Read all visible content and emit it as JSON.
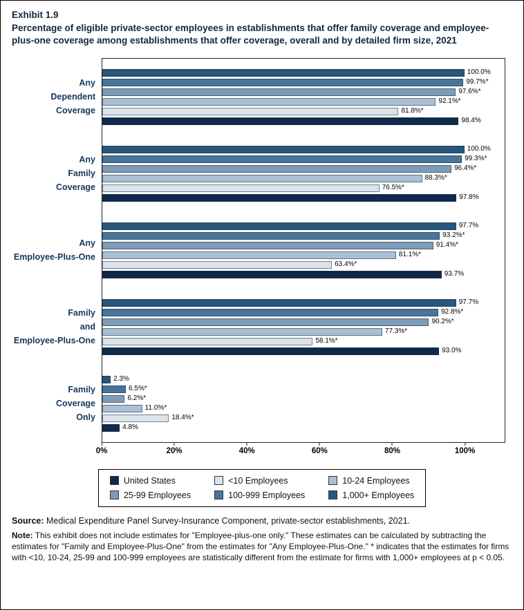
{
  "header": {
    "exhibit": "Exhibit 1.9"
  },
  "chart_data": {
    "type": "bar",
    "orientation": "horizontal",
    "title": "Percentage of eligible private-sector employees in establishments that offer family coverage and employee-plus-one coverage among establishments that offer coverage, overall and by detailed firm size, 2021",
    "categories": [
      "Any Dependent Coverage",
      "Any Family Coverage",
      "Any Employee-Plus-One",
      "Family and Employee-Plus-One",
      "Family Coverage Only"
    ],
    "group_labels_display": [
      "Any\nDependent\nCoverage",
      "Any\nFamily\nCoverage",
      "Any\nEmployee-Plus-One",
      "Family\nand\nEmployee-Plus-One",
      "Family\nCoverage\nOnly"
    ],
    "bar_order_top_to_bottom": [
      "1,000+ Employees",
      "100-999 Employees",
      "25-99 Employees",
      "10-24 Employees",
      "<10 Employees",
      "United States"
    ],
    "series": [
      {
        "name": "United States",
        "color": "#10294a",
        "values": [
          98.4,
          97.8,
          93.7,
          93.0,
          4.8
        ],
        "labels": [
          "98.4%",
          "97.8%",
          "93.7%",
          "93.0%",
          "4.8%"
        ]
      },
      {
        "name": "<10 Employees",
        "color": "#dce4eb",
        "values": [
          81.8,
          76.5,
          63.4,
          58.1,
          18.4
        ],
        "labels": [
          "81.8%*",
          "76.5%*",
          "63.4%*",
          "58.1%*",
          "18.4%*"
        ]
      },
      {
        "name": "10-24 Employees",
        "color": "#a9c0d4",
        "values": [
          92.1,
          88.3,
          81.1,
          77.3,
          11.0
        ],
        "labels": [
          "92.1%*",
          "88.3%*",
          "81.1%*",
          "77.3%*",
          "11.0%*"
        ]
      },
      {
        "name": "25-99 Employees",
        "color": "#7e9cb7",
        "values": [
          97.6,
          96.4,
          91.4,
          90.2,
          6.2
        ],
        "labels": [
          "97.6%*",
          "96.4%*",
          "91.4%*",
          "90.2%*",
          "6.2%*"
        ]
      },
      {
        "name": "100-999 Employees",
        "color": "#49759b",
        "values": [
          99.7,
          99.3,
          93.2,
          92.8,
          6.5
        ],
        "labels": [
          "99.7%*",
          "99.3%*",
          "93.2%*",
          "92.8%*",
          "6.5%*"
        ]
      },
      {
        "name": "1,000+ Employees",
        "color": "#29567c",
        "values": [
          100.0,
          100.0,
          97.7,
          97.7,
          2.3
        ],
        "labels": [
          "100.0%",
          "100.0%",
          "97.7%",
          "97.7%",
          "2.3%"
        ]
      }
    ],
    "x_axis": {
      "min": 0,
      "max": 100,
      "ticks": [
        "0%",
        "20%",
        "40%",
        "60%",
        "80%",
        "100%"
      ]
    },
    "legend": [
      "United States",
      "<10 Employees",
      "10-24 Employees",
      "25-99 Employees",
      "100-999 Employees",
      "1,000+ Employees"
    ],
    "grid": false,
    "legend_position": "bottom"
  },
  "source": {
    "label": "Source:",
    "text": " Medical Expenditure Panel Survey-Insurance Component, private-sector establishments, 2021."
  },
  "note": {
    "label": "Note:",
    "text": " This exhibit does not include estimates for \"Employee-plus-one only.\" These estimates can be calculated by subtracting the estimates for \"Family and Employee-Plus-One\" from the estimates for \"Any Employee-Plus-One.\" * indicates that the estimates for firms with <10, 10-24, 25-99 and 100-999 employees are statistically different from the estimate for firms with 1,000+ employees at p < 0.05."
  }
}
